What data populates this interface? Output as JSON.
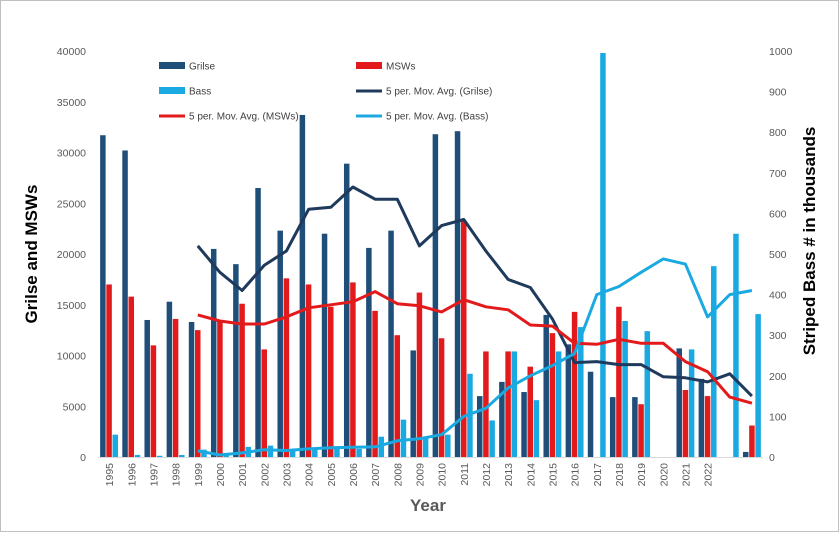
{
  "chart_data": {
    "type": "bar",
    "title": "",
    "xlabel": "Year",
    "ylabel_left": "Grilse and MSWs",
    "ylabel_right": "Striped Bass # in thousands",
    "ylim_left": [
      0,
      40000
    ],
    "ylim_right": [
      0,
      1000
    ],
    "yticks_left": [
      "0",
      "5000",
      "10000",
      "15000",
      "20000",
      "25000",
      "30000",
      "35000",
      "40000"
    ],
    "yticks_right": [
      "0",
      "100",
      "200",
      "300",
      "400",
      "500",
      "600",
      "700",
      "800",
      "900",
      "1000"
    ],
    "categories": [
      "1995",
      "1996",
      "1997",
      "1998",
      "1999",
      "2000",
      "2001",
      "2002",
      "2003",
      "2004",
      "2005",
      "2006",
      "2007",
      "2008",
      "2009",
      "2010",
      "2011",
      "2012",
      "2013",
      "2014",
      "2015",
      "2016",
      "2017",
      "2018",
      "2019",
      "2020",
      "2021",
      "2022",
      "",
      ""
    ],
    "grid": false,
    "legend_position": "top",
    "series": [
      {
        "name": "Grilse",
        "kind": "bar",
        "axis": "left",
        "color": "#1f4e79",
        "values": [
          31700,
          30200,
          13500,
          15300,
          13300,
          20500,
          19000,
          26500,
          22300,
          33700,
          22000,
          28900,
          20600,
          22300,
          10500,
          31800,
          32100,
          6000,
          7400,
          6400,
          14000,
          11100,
          8400,
          5900,
          5900,
          null,
          10700,
          7700,
          null,
          500
        ]
      },
      {
        "name": "MSWs",
        "kind": "bar",
        "axis": "left",
        "color": "#e31a1c",
        "values": [
          17000,
          15800,
          11000,
          13600,
          12500,
          13300,
          15100,
          10600,
          17600,
          17000,
          14800,
          17200,
          14400,
          12000,
          16200,
          11700,
          23300,
          10400,
          10400,
          8900,
          12200,
          14300,
          null,
          14800,
          5200,
          null,
          6600,
          6000,
          null,
          3100
        ]
      },
      {
        "name": "Bass",
        "kind": "bar",
        "axis": "right",
        "color": "#1aa9e0",
        "values": [
          55,
          5,
          3,
          5,
          18,
          10,
          25,
          28,
          15,
          20,
          25,
          20,
          50,
          92,
          50,
          55,
          205,
          90,
          260,
          140,
          260,
          320,
          995,
          335,
          310,
          null,
          265,
          470,
          550,
          352
        ]
      },
      {
        "name": "5 per. Mov. Avg. (Grilse)",
        "kind": "line",
        "axis": "left",
        "color": "#1f3a5c",
        "values": [
          null,
          null,
          null,
          null,
          20800,
          18200,
          16400,
          18900,
          20300,
          24400,
          24600,
          26600,
          25400,
          25400,
          20800,
          22800,
          23400,
          20300,
          17500,
          16700,
          13600,
          9300,
          9400,
          9100,
          9100,
          7900,
          7800,
          7400,
          8200,
          6000
        ]
      },
      {
        "name": "5 per. Mov. Avg. (MSWs)",
        "kind": "line",
        "axis": "left",
        "color": "#e31a1c",
        "values": [
          null,
          null,
          null,
          null,
          14000,
          13400,
          13100,
          13100,
          13800,
          14700,
          15000,
          15300,
          16300,
          15100,
          14900,
          14300,
          15500,
          14800,
          14500,
          13000,
          12900,
          11200,
          11100,
          11600,
          11200,
          11200,
          9400,
          8400,
          5900,
          5300
        ]
      },
      {
        "name": "5 per. Mov. Avg. (Bass)",
        "kind": "line",
        "axis": "right",
        "color": "#1aa9e0",
        "values": [
          null,
          null,
          null,
          null,
          15,
          5,
          10,
          18,
          16,
          20,
          23,
          24,
          25,
          40,
          45,
          55,
          100,
          120,
          170,
          200,
          225,
          255,
          400,
          420,
          455,
          488,
          475,
          345,
          400,
          410
        ]
      }
    ]
  }
}
